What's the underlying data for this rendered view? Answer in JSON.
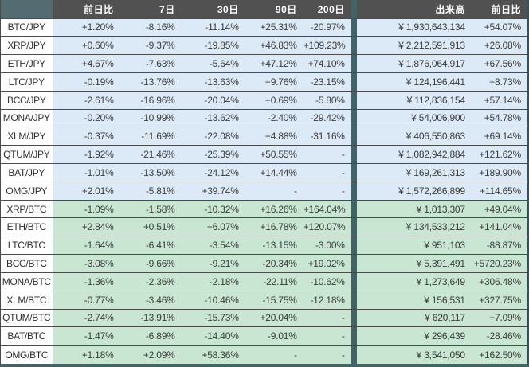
{
  "table": {
    "corner_label": "",
    "columns": [
      "前日比",
      "7日",
      "30日",
      "90日",
      "200日",
      "出来高",
      "前日比"
    ],
    "rows": [
      {
        "pair": "BTC/JPY",
        "quote": "JPY",
        "d1": "+1.20%",
        "d7": "-8.16%",
        "d30": "-11.14%",
        "d90": "+25.31%",
        "d200": "-20.97%",
        "volume": "¥ 1,930,643,134",
        "d1b": "+54.07%"
      },
      {
        "pair": "XRP/JPY",
        "quote": "JPY",
        "d1": "+0.60%",
        "d7": "-9.37%",
        "d30": "-19.85%",
        "d90": "+46.83%",
        "d200": "+109.23%",
        "volume": "¥ 2,212,591,913",
        "d1b": "+26.08%"
      },
      {
        "pair": "ETH/JPY",
        "quote": "JPY",
        "d1": "+4.67%",
        "d7": "-7.63%",
        "d30": "-5.64%",
        "d90": "+47.12%",
        "d200": "+74.10%",
        "volume": "¥ 1,876,064,917",
        "d1b": "+67.56%"
      },
      {
        "pair": "LTC/JPY",
        "quote": "JPY",
        "d1": "-0.19%",
        "d7": "-13.76%",
        "d30": "-13.63%",
        "d90": "+9.76%",
        "d200": "-23.15%",
        "volume": "¥ 124,196,441",
        "d1b": "+8.73%"
      },
      {
        "pair": "BCC/JPY",
        "quote": "JPY",
        "d1": "-2.61%",
        "d7": "-16.96%",
        "d30": "-20.04%",
        "d90": "+0.69%",
        "d200": "-5.80%",
        "volume": "¥ 112,836,154",
        "d1b": "+57.14%"
      },
      {
        "pair": "MONA/JPY",
        "quote": "JPY",
        "d1": "-0.20%",
        "d7": "-10.99%",
        "d30": "-13.62%",
        "d90": "-2.40%",
        "d200": "-29.42%",
        "volume": "¥ 54,006,900",
        "d1b": "+54.78%"
      },
      {
        "pair": "XLM/JPY",
        "quote": "JPY",
        "d1": "-0.37%",
        "d7": "-11.69%",
        "d30": "-22.08%",
        "d90": "+4.88%",
        "d200": "-31.16%",
        "volume": "¥ 406,550,863",
        "d1b": "+69.14%"
      },
      {
        "pair": "QTUM/JPY",
        "quote": "JPY",
        "d1": "-1.92%",
        "d7": "-21.46%",
        "d30": "-25.39%",
        "d90": "+50.55%",
        "d200": "-",
        "volume": "¥ 1,082,942,884",
        "d1b": "+121.62%"
      },
      {
        "pair": "BAT/JPY",
        "quote": "JPY",
        "d1": "-1.01%",
        "d7": "-13.50%",
        "d30": "-24.12%",
        "d90": "+14.44%",
        "d200": "-",
        "volume": "¥ 169,261,313",
        "d1b": "+189.90%"
      },
      {
        "pair": "OMG/JPY",
        "quote": "JPY",
        "d1": "+2.01%",
        "d7": "-5.81%",
        "d30": "+39.74%",
        "d90": "-",
        "d200": "-",
        "volume": "¥ 1,572,266,899",
        "d1b": "+114.65%"
      },
      {
        "pair": "XRP/BTC",
        "quote": "BTC",
        "d1": "-1.09%",
        "d7": "-1.58%",
        "d30": "-10.32%",
        "d90": "+16.26%",
        "d200": "+164.04%",
        "volume": "¥ 1,013,307",
        "d1b": "+49.04%"
      },
      {
        "pair": "ETH/BTC",
        "quote": "BTC",
        "d1": "+2.84%",
        "d7": "+0.51%",
        "d30": "+6.07%",
        "d90": "+16.78%",
        "d200": "+120.07%",
        "volume": "¥ 134,533,212",
        "d1b": "+141.04%"
      },
      {
        "pair": "LTC/BTC",
        "quote": "BTC",
        "d1": "-1.64%",
        "d7": "-6.41%",
        "d30": "-3.54%",
        "d90": "-13.15%",
        "d200": "-3.00%",
        "volume": "¥ 951,103",
        "d1b": "-88.87%"
      },
      {
        "pair": "BCC/BTC",
        "quote": "BTC",
        "d1": "-3.08%",
        "d7": "-9.66%",
        "d30": "-9.21%",
        "d90": "-20.34%",
        "d200": "+19.02%",
        "volume": "¥ 5,391,491",
        "d1b": "+5720.23%"
      },
      {
        "pair": "MONA/BTC",
        "quote": "BTC",
        "d1": "-1.36%",
        "d7": "-2.36%",
        "d30": "-2.18%",
        "d90": "-22.11%",
        "d200": "-10.62%",
        "volume": "¥ 1,273,649",
        "d1b": "+306.48%"
      },
      {
        "pair": "XLM/BTC",
        "quote": "BTC",
        "d1": "-0.77%",
        "d7": "-3.46%",
        "d30": "-10.46%",
        "d90": "-15.75%",
        "d200": "-12.18%",
        "volume": "¥ 156,531",
        "d1b": "+327.75%"
      },
      {
        "pair": "QTUM/BTC",
        "quote": "BTC",
        "d1": "-2.74%",
        "d7": "-13.91%",
        "d30": "-15.73%",
        "d90": "+20.04%",
        "d200": "-",
        "volume": "¥ 620,117",
        "d1b": "+7.09%"
      },
      {
        "pair": "BAT/BTC",
        "quote": "BTC",
        "d1": "-1.47%",
        "d7": "-6.89%",
        "d30": "-14.40%",
        "d90": "-9.01%",
        "d200": "-",
        "volume": "¥ 296,439",
        "d1b": "-28.46%"
      },
      {
        "pair": "OMG/BTC",
        "quote": "BTC",
        "d1": "+1.18%",
        "d7": "+2.09%",
        "d30": "+58.36%",
        "d90": "-",
        "d200": "-",
        "volume": "¥ 3,541,050",
        "d1b": "+162.50%"
      }
    ]
  },
  "colors": {
    "header_bg": "#515151",
    "corner_bg": "#546b72",
    "separator_bg": "#3f656b",
    "jpy_row_bg": "#dce9f6",
    "btc_row_bg": "#c9e6d2",
    "row_divider": "#4a4a4a",
    "header_text": "#ffffff",
    "body_text": "#3b3b3b"
  }
}
